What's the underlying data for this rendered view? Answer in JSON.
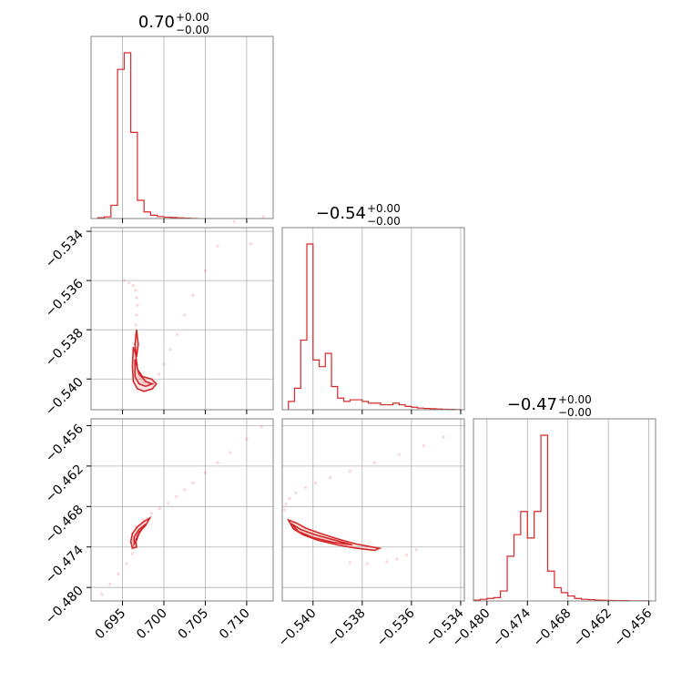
{
  "chart_data": {
    "type": "corner",
    "color": "#d62728",
    "parameters": [
      {
        "title_value": "0.70",
        "title_plus": "+0.00",
        "title_minus": "−0.00",
        "range": [
          0.6912,
          0.7132
        ],
        "ticks": [
          0.695,
          0.7,
          0.705,
          0.71
        ],
        "tick_labels": [
          "0.695",
          "0.700",
          "0.705",
          "0.710"
        ]
      },
      {
        "title_value": "−0.54",
        "title_plus": "+0.00",
        "title_minus": "−0.00",
        "range": [
          -0.54125,
          -0.53385
        ],
        "ticks": [
          -0.54,
          -0.538,
          -0.536,
          -0.534
        ],
        "tick_labels": [
          "−0.540",
          "−0.538",
          "−0.536",
          "−0.534"
        ]
      },
      {
        "title_value": "−0.47",
        "title_plus": "+0.00",
        "title_minus": "−0.00",
        "range": [
          -0.482,
          -0.455
        ],
        "ticks": [
          -0.48,
          -0.474,
          -0.468,
          -0.462,
          -0.456
        ],
        "tick_labels": [
          "−0.480",
          "−0.474",
          "−0.468",
          "−0.462",
          "−0.456"
        ]
      }
    ],
    "histograms": [
      {
        "param": 0,
        "edges": [
          0.692,
          0.6928,
          0.6936,
          0.6944,
          0.6952,
          0.696,
          0.6968,
          0.6976,
          0.6984,
          0.6992,
          0.7,
          0.7008,
          0.7016,
          0.7024,
          0.7032,
          0.704
        ],
        "counts": [
          0.005,
          0.01,
          0.08,
          0.9,
          1.0,
          0.52,
          0.11,
          0.04,
          0.02,
          0.012,
          0.008,
          0.006,
          0.004,
          0.002,
          0.001
        ]
      },
      {
        "param": 1,
        "edges": [
          -0.541,
          -0.54075,
          -0.5405,
          -0.54025,
          -0.54,
          -0.53975,
          -0.5395,
          -0.53925,
          -0.539,
          -0.53875,
          -0.5385,
          -0.53825,
          -0.538,
          -0.53775,
          -0.5375,
          -0.53725,
          -0.537,
          -0.53675,
          -0.5365,
          -0.53625,
          -0.536,
          -0.53575,
          -0.5355,
          -0.53525,
          -0.535,
          -0.53475,
          -0.5345,
          -0.53425,
          -0.534
        ],
        "counts": [
          0.05,
          0.13,
          0.42,
          1.0,
          0.3,
          0.26,
          0.34,
          0.14,
          0.07,
          0.05,
          0.06,
          0.06,
          0.05,
          0.04,
          0.04,
          0.03,
          0.03,
          0.04,
          0.03,
          0.02,
          0.015,
          0.01,
          0.008,
          0.006,
          0.004,
          0.003,
          0.002,
          0.001
        ]
      },
      {
        "param": 2,
        "edges": [
          -0.482,
          -0.481,
          -0.48,
          -0.479,
          -0.478,
          -0.477,
          -0.476,
          -0.475,
          -0.474,
          -0.473,
          -0.472,
          -0.471,
          -0.47,
          -0.469,
          -0.468,
          -0.467,
          -0.466,
          -0.465,
          -0.464,
          -0.463,
          -0.462,
          -0.461,
          -0.46,
          -0.459,
          -0.458,
          -0.457,
          -0.456
        ],
        "counts": [
          0.005,
          0.01,
          0.015,
          0.02,
          0.06,
          0.27,
          0.4,
          0.54,
          0.38,
          0.54,
          1.0,
          0.18,
          0.08,
          0.05,
          0.03,
          0.015,
          0.01,
          0.008,
          0.005,
          0.004,
          0.003,
          0.002,
          0.002,
          0.001,
          0.001,
          0.001
        ]
      }
    ],
    "joint_panels": [
      {
        "x_param": 0,
        "y_param": 1,
        "points": [
          [
            0.6952,
            -0.536
          ],
          [
            0.6958,
            -0.5361
          ],
          [
            0.6963,
            -0.5362
          ],
          [
            0.6966,
            -0.5364
          ],
          [
            0.6967,
            -0.5367
          ],
          [
            0.6968,
            -0.537
          ],
          [
            0.6967,
            -0.5374
          ],
          [
            0.6966,
            -0.5378
          ],
          [
            0.6965,
            -0.5382
          ],
          [
            0.6965,
            -0.5386
          ],
          [
            0.6966,
            -0.539
          ],
          [
            0.6968,
            -0.5394
          ],
          [
            0.6972,
            -0.5398
          ],
          [
            0.6977,
            -0.5401
          ],
          [
            0.6982,
            -0.5402
          ],
          [
            0.6988,
            -0.5401
          ],
          [
            0.6994,
            -0.5398
          ],
          [
            0.7,
            -0.5394
          ],
          [
            0.7008,
            -0.5388
          ],
          [
            0.7016,
            -0.5382
          ],
          [
            0.7025,
            -0.5374
          ],
          [
            0.7035,
            -0.5366
          ],
          [
            0.705,
            -0.5356
          ],
          [
            0.7065,
            -0.5346
          ],
          [
            0.7085,
            -0.5336
          ],
          [
            0.7105,
            -0.5345
          ],
          [
            0.712,
            -0.5334
          ]
        ],
        "contours": [
          [
            [
              0.6963,
              -0.5387
            ],
            [
              0.6962,
              -0.5395
            ],
            [
              0.6963,
              -0.5401
            ],
            [
              0.6968,
              -0.5404
            ],
            [
              0.6976,
              -0.5405
            ],
            [
              0.6986,
              -0.5404
            ],
            [
              0.6991,
              -0.5402
            ],
            [
              0.6985,
              -0.54
            ],
            [
              0.6974,
              -0.5399
            ],
            [
              0.6968,
              -0.5396
            ],
            [
              0.6966,
              -0.539
            ]
          ],
          [
            [
              0.6965,
              -0.5392
            ],
            [
              0.6965,
              -0.5399
            ],
            [
              0.697,
              -0.5402
            ],
            [
              0.6978,
              -0.5403
            ],
            [
              0.6986,
              -0.5402
            ],
            [
              0.6978,
              -0.5401
            ],
            [
              0.697,
              -0.5398
            ]
          ],
          [
            [
              0.6967,
              -0.538
            ],
            [
              0.6965,
              -0.5386
            ],
            [
              0.6967,
              -0.5391
            ],
            [
              0.6969,
              -0.5386
            ]
          ]
        ]
      },
      {
        "x_param": 0,
        "y_param": 2,
        "points": [
          [
            0.6925,
            -0.481
          ],
          [
            0.6935,
            -0.4795
          ],
          [
            0.6945,
            -0.478
          ],
          [
            0.6955,
            -0.4765
          ],
          [
            0.6962,
            -0.475
          ],
          [
            0.6966,
            -0.474
          ],
          [
            0.6963,
            -0.473
          ],
          [
            0.6962,
            -0.472
          ],
          [
            0.6966,
            -0.471
          ],
          [
            0.6975,
            -0.47
          ],
          [
            0.6985,
            -0.469
          ],
          [
            0.6995,
            -0.4683
          ],
          [
            0.7005,
            -0.4675
          ],
          [
            0.7015,
            -0.4665
          ],
          [
            0.7025,
            -0.4655
          ],
          [
            0.7035,
            -0.4645
          ],
          [
            0.705,
            -0.463
          ],
          [
            0.7065,
            -0.4615
          ],
          [
            0.708,
            -0.46
          ],
          [
            0.71,
            -0.458
          ],
          [
            0.7118,
            -0.4562
          ]
        ],
        "contours": [
          [
            [
              0.6962,
              -0.4742
            ],
            [
              0.696,
              -0.4732
            ],
            [
              0.6962,
              -0.472
            ],
            [
              0.6968,
              -0.471
            ],
            [
              0.6975,
              -0.4703
            ],
            [
              0.6983,
              -0.4697
            ],
            [
              0.6978,
              -0.4708
            ],
            [
              0.697,
              -0.4718
            ],
            [
              0.6966,
              -0.473
            ],
            [
              0.6967,
              -0.474
            ]
          ],
          [
            [
              0.6964,
              -0.4736
            ],
            [
              0.6964,
              -0.4725
            ],
            [
              0.697,
              -0.4714
            ],
            [
              0.6978,
              -0.4706
            ],
            [
              0.697,
              -0.472
            ],
            [
              0.6967,
              -0.473
            ]
          ]
        ]
      },
      {
        "x_param": 1,
        "y_param": 2,
        "points": [
          [
            -0.54115,
            -0.4685
          ],
          [
            -0.5411,
            -0.4676
          ],
          [
            -0.54095,
            -0.4668
          ],
          [
            -0.5407,
            -0.466
          ],
          [
            -0.5403,
            -0.4652
          ],
          [
            -0.5399,
            -0.4645
          ],
          [
            -0.5393,
            -0.4637
          ],
          [
            -0.5385,
            -0.4628
          ],
          [
            -0.5375,
            -0.4615
          ],
          [
            -0.5365,
            -0.4603
          ],
          [
            -0.5355,
            -0.459
          ],
          [
            -0.5347,
            -0.4577
          ],
          [
            -0.5358,
            -0.4744
          ],
          [
            -0.5362,
            -0.4752
          ],
          [
            -0.5366,
            -0.4758
          ],
          [
            -0.537,
            -0.4762
          ],
          [
            -0.5378,
            -0.4765
          ],
          [
            -0.5385,
            -0.4763
          ]
        ],
        "contours": [
          [
            [
              -0.541,
              -0.47
            ],
            [
              -0.5408,
              -0.4713
            ],
            [
              -0.5404,
              -0.4722
            ],
            [
              -0.5398,
              -0.473
            ],
            [
              -0.539,
              -0.4737
            ],
            [
              -0.5382,
              -0.4742
            ],
            [
              -0.5375,
              -0.4745
            ],
            [
              -0.5373,
              -0.4742
            ],
            [
              -0.5382,
              -0.4736
            ],
            [
              -0.539,
              -0.4728
            ],
            [
              -0.5397,
              -0.472
            ],
            [
              -0.5403,
              -0.4712
            ],
            [
              -0.5407,
              -0.4704
            ]
          ],
          [
            [
              -0.5409,
              -0.4705
            ],
            [
              -0.5405,
              -0.4714
            ],
            [
              -0.5399,
              -0.4722
            ],
            [
              -0.5391,
              -0.473
            ],
            [
              -0.5384,
              -0.4737
            ],
            [
              -0.5392,
              -0.4733
            ],
            [
              -0.54,
              -0.4726
            ],
            [
              -0.5406,
              -0.4717
            ]
          ]
        ]
      }
    ]
  }
}
